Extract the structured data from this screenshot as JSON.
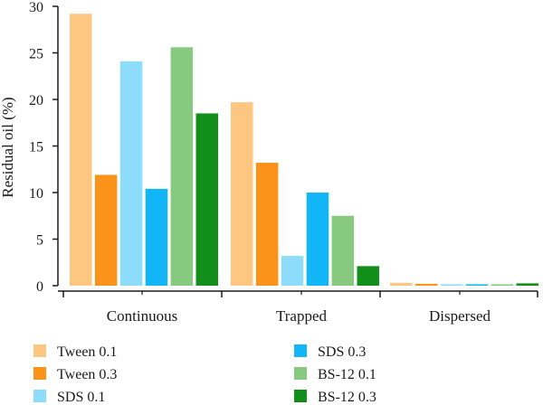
{
  "chart_data": {
    "type": "bar",
    "categories": [
      "Continuous",
      "Trapped",
      "Dispersed"
    ],
    "series": [
      {
        "name": "Tween 0.1",
        "color": "#fdc681",
        "values": [
          29.2,
          19.7,
          0.3
        ]
      },
      {
        "name": "Tween 0.3",
        "color": "#fb9219",
        "values": [
          11.9,
          13.2,
          0.2
        ]
      },
      {
        "name": "SDS 0.1",
        "color": "#8ddcfb",
        "values": [
          24.1,
          3.2,
          0.15
        ]
      },
      {
        "name": "SDS 0.3",
        "color": "#12b5f5",
        "values": [
          10.4,
          10.0,
          0.15
        ]
      },
      {
        "name": "BS-12 0.1",
        "color": "#86c97f",
        "values": [
          25.6,
          7.5,
          0.15
        ]
      },
      {
        "name": "BS-12 0.3",
        "color": "#128f1b",
        "values": [
          18.5,
          2.1,
          0.25
        ]
      }
    ],
    "title": "",
    "xlabel": "",
    "ylabel": "Residual oil (%)",
    "ylim": [
      0,
      30
    ],
    "yticks": [
      "0",
      "5",
      "10",
      "15",
      "20",
      "25",
      "30"
    ],
    "grid": false,
    "legend_position": "bottom"
  }
}
